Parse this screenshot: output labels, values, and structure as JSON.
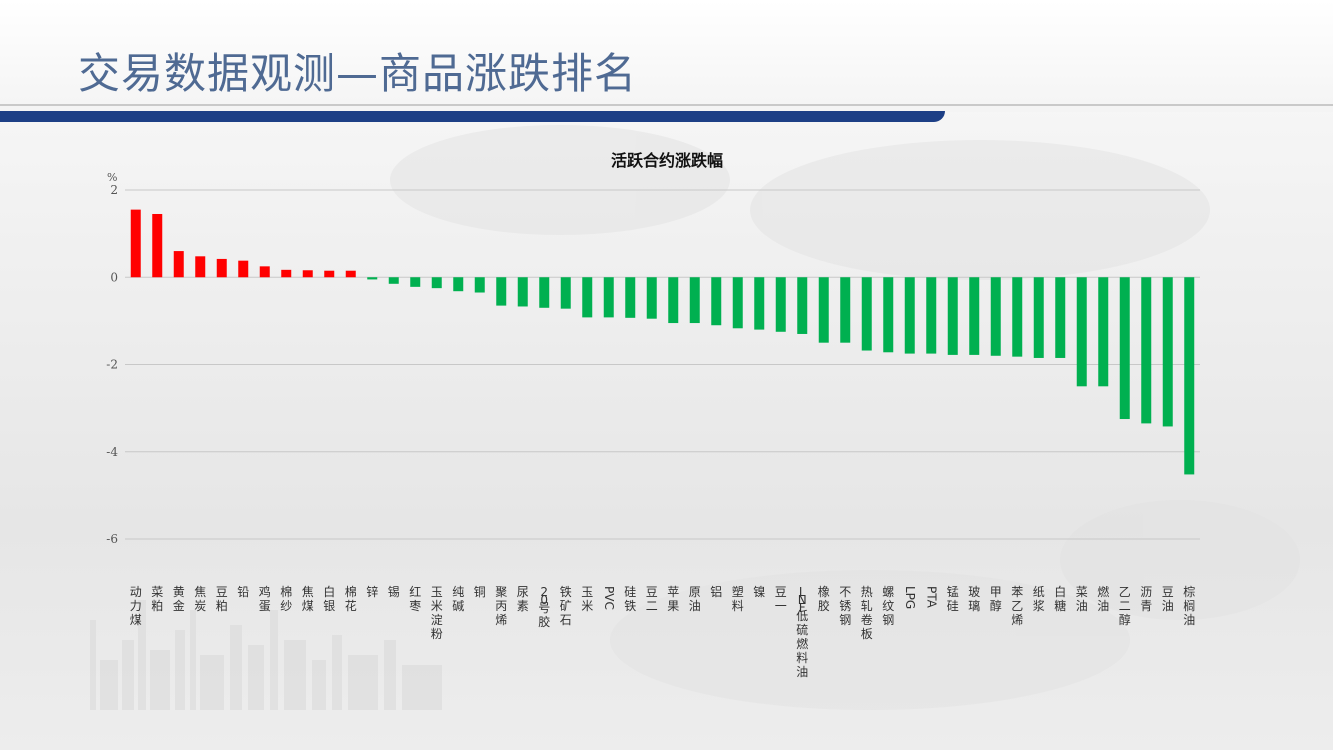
{
  "header": {
    "title": "交易数据观测—商品涨跌排名"
  },
  "colors": {
    "title": "#4f6a93",
    "band": "#1d3f86",
    "up": "#ff0000",
    "down": "#00b050"
  },
  "chart_data": {
    "type": "bar",
    "title": "活跃合约涨跌幅",
    "ylabel": "%",
    "xlabel": "",
    "ylim": [
      -6,
      2
    ],
    "yticks": [
      2,
      0,
      -2,
      -4,
      -6
    ],
    "grid": true,
    "legend": "none",
    "categories": [
      "动力煤",
      "菜粕",
      "黄金",
      "焦炭",
      "豆粕",
      "铅",
      "鸡蛋",
      "棉纱",
      "焦煤",
      "白银",
      "棉花",
      "锌",
      "锡",
      "红枣",
      "玉米淀粉",
      "纯碱",
      "铜",
      "聚丙烯",
      "尿素",
      "20号胶",
      "铁矿石",
      "玉米",
      "PVC",
      "硅铁",
      "豆二",
      "苹果",
      "原油",
      "铝",
      "塑料",
      "镍",
      "豆一",
      "LNF低硫燃料油",
      "橡胶",
      "不锈钢",
      "热轧卷板",
      "螺纹钢",
      "LPG",
      "PTA",
      "锰硅",
      "玻璃",
      "甲醇",
      "苯乙烯",
      "纸浆",
      "白糖",
      "菜油",
      "燃油",
      "乙二醇",
      "沥青",
      "豆油",
      "棕榈油"
    ],
    "values": [
      1.55,
      1.45,
      0.6,
      0.48,
      0.42,
      0.38,
      0.25,
      0.17,
      0.16,
      0.15,
      0.15,
      -0.05,
      -0.15,
      -0.22,
      -0.25,
      -0.32,
      -0.35,
      -0.65,
      -0.67,
      -0.7,
      -0.72,
      -0.92,
      -0.92,
      -0.93,
      -0.95,
      -1.05,
      -1.05,
      -1.1,
      -1.17,
      -1.2,
      -1.25,
      -1.3,
      -1.5,
      -1.5,
      -1.68,
      -1.72,
      -1.75,
      -1.75,
      -1.78,
      -1.78,
      -1.8,
      -1.82,
      -1.85,
      -1.85,
      -2.5,
      -2.5,
      -3.25,
      -3.35,
      -3.42,
      -4.52
    ]
  }
}
